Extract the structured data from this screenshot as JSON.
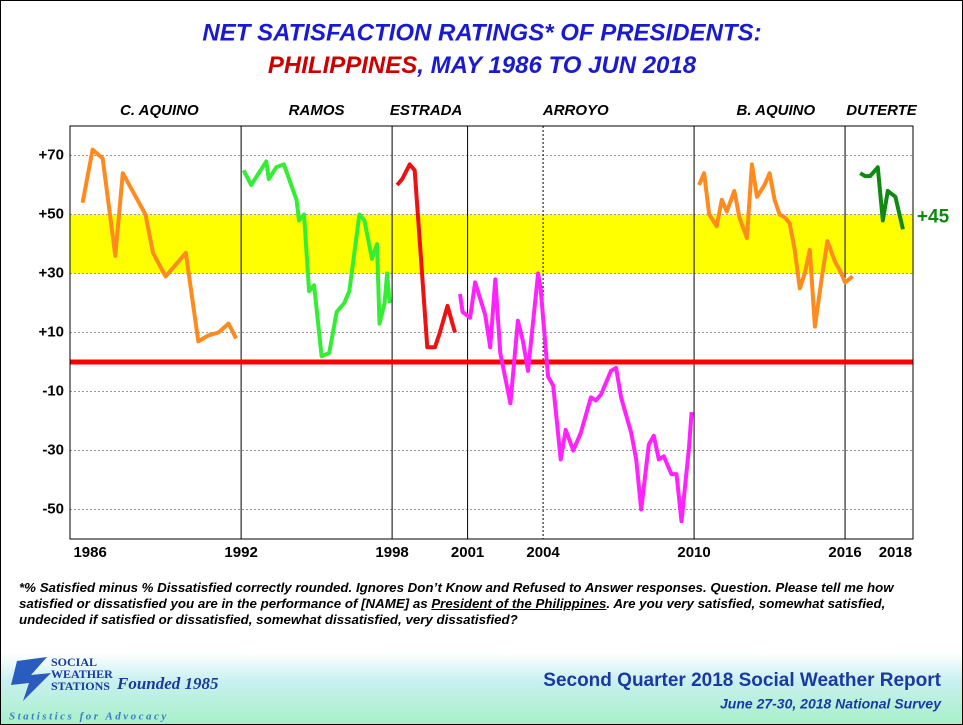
{
  "chart_data": {
    "type": "line",
    "title": "NET SATISFACTION RATINGS* OF PRESIDENTS:",
    "subtitle_parts": [
      "PHILIPPINES",
      ", MAY 1986 TO JUN 2018"
    ],
    "xlim": [
      1985.2,
      2018.7
    ],
    "xticks": [
      1986,
      1992,
      1998,
      2001,
      2004,
      2010,
      2016,
      2018
    ],
    "xgrid": [
      1992,
      1998,
      2001,
      2004,
      2010,
      2016
    ],
    "xgrid_dotted": [
      2004
    ],
    "ylim": [
      -60,
      80
    ],
    "yticks": [
      {
        "value": 70,
        "label": "+70"
      },
      {
        "value": 50,
        "label": "+50"
      },
      {
        "value": 30,
        "label": "+30"
      },
      {
        "value": 10,
        "label": "+10"
      },
      -10,
      -30,
      -50
    ],
    "grid": true,
    "band": [
      30,
      50
    ],
    "band_color": "#ffff00",
    "reference_line": 0,
    "reference_color": "#ff0000",
    "series": [
      {
        "name": "C. AQUINO",
        "color": "#ff8a1e",
        "x": [
          1985.7,
          1986.1,
          1986.5,
          1987.0,
          1987.3,
          1988.2,
          1988.5,
          1989.0,
          1989.8,
          1990.3,
          1990.7,
          1991.1,
          1991.5,
          1991.8
        ],
        "values": [
          54,
          72,
          69,
          36,
          64,
          50,
          37,
          29,
          37,
          7,
          9,
          10,
          13,
          8
        ]
      },
      {
        "name": "RAMOS",
        "color": "#33ee33",
        "x": [
          1992.1,
          1992.4,
          1993.0,
          1993.1,
          1993.4,
          1993.7,
          1994.2,
          1994.3,
          1994.5,
          1994.7,
          1994.9,
          1995.2,
          1995.5,
          1995.8,
          1996.1,
          1996.3,
          1996.7,
          1996.9,
          1997.2,
          1997.4,
          1997.5,
          1997.7,
          1997.8,
          1997.9
        ],
        "values": [
          65,
          60,
          68,
          62,
          66,
          67,
          55,
          48,
          50,
          24,
          26,
          2,
          3,
          17,
          20,
          24,
          50,
          48,
          35,
          40,
          13,
          20,
          30,
          20
        ]
      },
      {
        "name": "ESTRADA",
        "color": "#ee1111",
        "x": [
          1998.2,
          1998.4,
          1998.7,
          1998.9,
          1999.4,
          1999.7,
          1999.9,
          2000.2,
          2000.5
        ],
        "values": [
          60,
          62,
          67,
          65,
          5,
          5,
          10,
          19,
          10
        ]
      },
      {
        "name": "ARROYO",
        "color": "#ff22ff",
        "x": [
          2000.7,
          2000.8,
          2001.1,
          2001.3,
          2001.7,
          2001.9,
          2002.1,
          2002.3,
          2002.7,
          2003.0,
          2003.2,
          2003.4,
          2003.8,
          2003.9,
          2004.2,
          2004.4,
          2004.7,
          2004.9,
          2005.2,
          2005.5,
          2005.9,
          2006.1,
          2006.3,
          2006.7,
          2006.9,
          2007.1,
          2007.5,
          2007.7,
          2007.9,
          2008.2,
          2008.4,
          2008.6,
          2008.8,
          2009.1,
          2009.3,
          2009.5,
          2009.8,
          2009.9
        ],
        "values": [
          23,
          17,
          15,
          27,
          16,
          5,
          28,
          3,
          -14,
          14,
          7,
          -3,
          30,
          25,
          -5,
          -8,
          -33,
          -23,
          -30,
          -24,
          -12,
          -13,
          -11,
          -3,
          -2,
          -12,
          -24,
          -33,
          -50,
          -28,
          -25,
          -33,
          -32,
          -38,
          -38,
          -54,
          -29,
          -17
        ]
      },
      {
        "name": "B. AQUINO",
        "color": "#ff8a1e",
        "x": [
          2010.2,
          2010.4,
          2010.6,
          2010.9,
          2011.1,
          2011.3,
          2011.6,
          2011.8,
          2012.1,
          2012.3,
          2012.5,
          2012.8,
          2013.0,
          2013.2,
          2013.4,
          2013.6,
          2013.8,
          2014.0,
          2014.2,
          2014.4,
          2014.6,
          2014.8,
          2015.1,
          2015.3,
          2015.6,
          2015.8,
          2016.0,
          2016.3
        ],
        "values": [
          60,
          64,
          50,
          46,
          55,
          51,
          58,
          49,
          42,
          67,
          56,
          60,
          64,
          55,
          50,
          49,
          47,
          38,
          25,
          30,
          38,
          12,
          30,
          41,
          34,
          31,
          27,
          29
        ]
      },
      {
        "name": "DUTERTE",
        "color": "#118811",
        "x": [
          2016.6,
          2016.8,
          2017.0,
          2017.3,
          2017.5,
          2017.7,
          2018.0,
          2018.3
        ],
        "values": [
          64,
          63,
          63,
          66,
          48,
          58,
          56,
          45
        ],
        "value_labels": [
          null,
          null,
          null,
          null,
          null,
          null,
          null,
          "+45"
        ]
      }
    ],
    "footnote_parts": [
      "*% Satisfied minus % Dissatisfied correctly rounded. Ignores Don’t Know and Refused to Answer responses. Question. Please tell me how satisfied or dissatisfied you are in the performance of [NAME] as ",
      "President of the Philippines",
      ".  Are you very satisfied, somewhat satisfied, undecided if satisfied or dissatisfied, somewhat dissatisfied, very dissatisfied?"
    ],
    "logo": {
      "line1": "SOCIAL",
      "line2": "WEATHER",
      "line3": "STATIONS",
      "founded": "Founded 1985",
      "tagline": "Statistics for Advocacy"
    },
    "report_title": "Second Quarter 2018 Social Weather Report",
    "report_subtitle": "June 27-30, 2018 National Survey"
  }
}
